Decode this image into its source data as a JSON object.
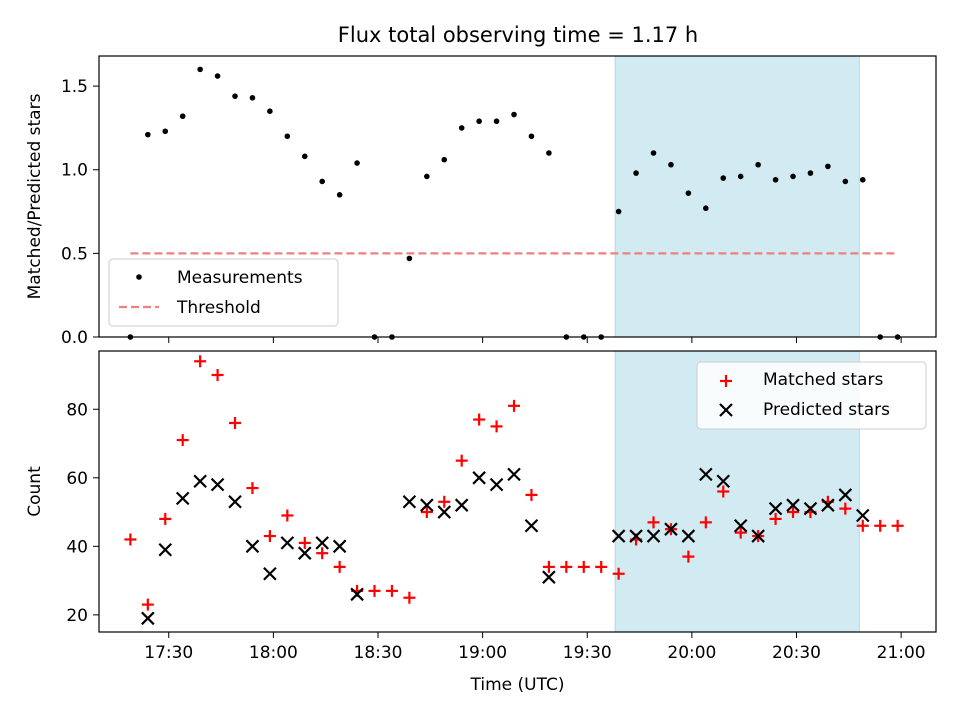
{
  "title": "Flux total observing time = 1.17 h",
  "colors": {
    "measurement": "#000000",
    "threshold": "#f08080",
    "matched": "#ff0000",
    "predicted": "#000000",
    "highlight": "#add8e6"
  },
  "chart_data": [
    {
      "type": "scatter",
      "ylabel": "Matched/Predicted stars",
      "xlabel": "",
      "xlim": [
        "17:10",
        "21:10"
      ],
      "ylim": [
        0,
        1.68
      ],
      "yticks": [
        "0.0",
        "0.5",
        "1.0",
        "1.5"
      ],
      "ytick_values": [
        0,
        0.5,
        1.0,
        1.5
      ],
      "legend_position": "lower-left",
      "highlight_span": [
        "19:38",
        "20:48"
      ],
      "series": [
        {
          "name": "Measurements",
          "marker": "dot",
          "x": [
            "17:19",
            "17:24",
            "17:29",
            "17:34",
            "17:39",
            "17:44",
            "17:49",
            "17:54",
            "17:59",
            "18:04",
            "18:09",
            "18:14",
            "18:19",
            "18:24",
            "18:29",
            "18:34",
            "18:39",
            "18:44",
            "18:49",
            "18:54",
            "18:59",
            "19:04",
            "19:09",
            "19:14",
            "19:19",
            "19:24",
            "19:29",
            "19:34",
            "19:39",
            "19:44",
            "19:49",
            "19:54",
            "19:59",
            "20:04",
            "20:09",
            "20:14",
            "20:19",
            "20:24",
            "20:29",
            "20:34",
            "20:39",
            "20:44",
            "20:49",
            "20:54",
            "20:59"
          ],
          "y": [
            0.0,
            1.21,
            1.23,
            1.32,
            1.6,
            1.56,
            1.44,
            1.43,
            1.35,
            1.2,
            1.08,
            0.93,
            0.85,
            1.04,
            0.0,
            0.0,
            0.47,
            0.96,
            1.06,
            1.25,
            1.29,
            1.29,
            1.33,
            1.2,
            1.1,
            0.0,
            0.0,
            0.0,
            0.75,
            0.98,
            1.1,
            1.03,
            0.86,
            0.77,
            0.95,
            0.96,
            1.03,
            0.94,
            0.96,
            0.98,
            1.02,
            0.93,
            0.94,
            0.0,
            0.0
          ]
        },
        {
          "name": "Threshold",
          "style": "dashed",
          "x": [
            "17:19",
            "20:59"
          ],
          "y": [
            0.5,
            0.5
          ]
        }
      ]
    },
    {
      "type": "scatter",
      "ylabel": "Count",
      "xlabel": "Time (UTC)",
      "xlim": [
        "17:10",
        "21:10"
      ],
      "ylim": [
        15,
        97
      ],
      "yticks": [
        "20",
        "40",
        "60",
        "80"
      ],
      "ytick_values": [
        20,
        40,
        60,
        80
      ],
      "xticks": [
        "17:30",
        "18:00",
        "18:30",
        "19:00",
        "19:30",
        "20:00",
        "20:30",
        "21:00"
      ],
      "legend_position": "upper-right",
      "highlight_span": [
        "19:38",
        "20:48"
      ],
      "series": [
        {
          "name": "Matched stars",
          "marker": "plus",
          "x": [
            "17:19",
            "17:24",
            "17:29",
            "17:34",
            "17:39",
            "17:44",
            "17:49",
            "17:54",
            "17:59",
            "18:04",
            "18:09",
            "18:14",
            "18:19",
            "18:24",
            "18:29",
            "18:34",
            "18:39",
            "18:44",
            "18:49",
            "18:54",
            "18:59",
            "19:04",
            "19:09",
            "19:14",
            "19:19",
            "19:24",
            "19:29",
            "19:34",
            "19:39",
            "19:44",
            "19:49",
            "19:54",
            "19:59",
            "20:04",
            "20:09",
            "20:14",
            "20:19",
            "20:24",
            "20:29",
            "20:34",
            "20:39",
            "20:44",
            "20:49",
            "20:54",
            "20:59"
          ],
          "y": [
            42,
            23,
            48,
            71,
            94,
            90,
            76,
            57,
            43,
            49,
            41,
            38,
            34,
            27,
            27,
            27,
            25,
            50,
            53,
            65,
            77,
            75,
            81,
            55,
            34,
            34,
            34,
            34,
            32,
            42,
            47,
            45,
            37,
            47,
            56,
            44,
            43,
            48,
            50,
            50,
            53,
            51,
            46,
            46,
            46
          ]
        },
        {
          "name": "Predicted stars",
          "marker": "x",
          "x": [
            "17:24",
            "17:29",
            "17:34",
            "17:39",
            "17:44",
            "17:49",
            "17:54",
            "17:59",
            "18:04",
            "18:09",
            "18:14",
            "18:19",
            "18:24",
            "18:39",
            "18:44",
            "18:49",
            "18:54",
            "18:59",
            "19:04",
            "19:09",
            "19:14",
            "19:19",
            "19:39",
            "19:44",
            "19:49",
            "19:54",
            "19:59",
            "20:04",
            "20:09",
            "20:14",
            "20:19",
            "20:24",
            "20:29",
            "20:34",
            "20:39",
            "20:44",
            "20:49"
          ],
          "y": [
            19,
            39,
            54,
            59,
            58,
            53,
            40,
            32,
            41,
            38,
            41,
            40,
            26,
            53,
            52,
            50,
            52,
            60,
            58,
            61,
            46,
            31,
            43,
            43,
            43,
            45,
            43,
            61,
            59,
            46,
            43,
            51,
            52,
            51,
            52,
            55,
            49
          ]
        }
      ]
    }
  ]
}
